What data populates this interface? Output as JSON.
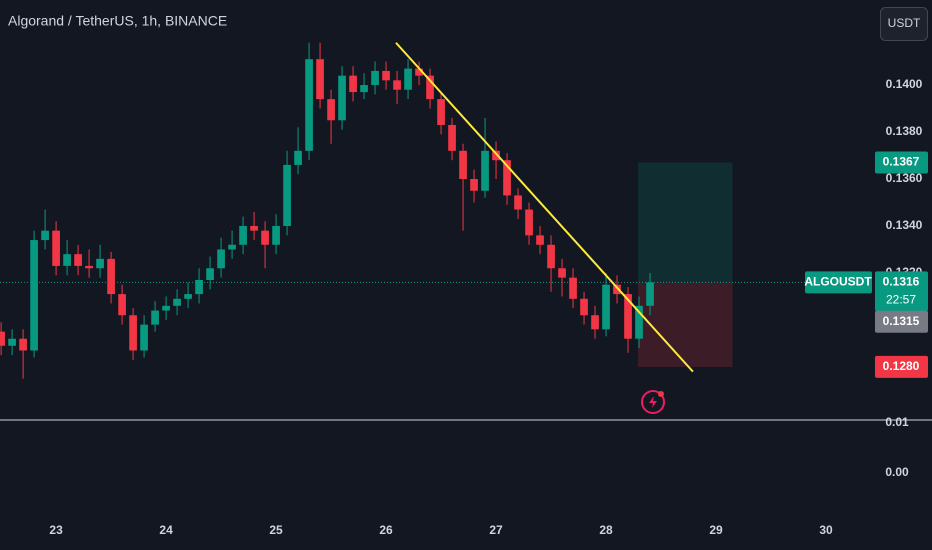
{
  "chart_data": {
    "type": "candlestick",
    "title": "Algorand / TetherUS, 1h, BINANCE",
    "currency_button": "USDT",
    "up_color": "#089981",
    "down_color": "#f23645",
    "x": [
      22.5,
      22.6,
      22.7,
      22.8,
      22.9,
      23.0,
      23.1,
      23.2,
      23.3,
      23.4,
      23.5,
      23.6,
      23.7,
      23.8,
      23.9,
      24.0,
      24.1,
      24.2,
      24.3,
      24.4,
      24.5,
      24.6,
      24.7,
      24.8,
      24.9,
      25.0,
      25.1,
      25.2,
      25.3,
      25.4,
      25.5,
      25.6,
      25.7,
      25.8,
      25.9,
      26.0,
      26.1,
      26.2,
      26.3,
      26.4,
      26.5,
      26.6,
      26.7,
      26.8,
      26.9,
      27.0,
      27.1,
      27.2,
      27.3,
      27.4,
      27.5,
      27.6,
      27.7,
      27.8,
      27.9,
      28.0,
      28.1,
      28.2,
      28.3,
      28.4
    ],
    "open": [
      0.1295,
      0.1289,
      0.1292,
      0.1287,
      0.1334,
      0.1338,
      0.1323,
      0.1328,
      0.1323,
      0.1322,
      0.1326,
      0.1311,
      0.1302,
      0.1287,
      0.1298,
      0.1304,
      0.1306,
      0.1309,
      0.1311,
      0.1317,
      0.1322,
      0.133,
      0.1332,
      0.134,
      0.1338,
      0.1332,
      0.134,
      0.1366,
      0.1372,
      0.1411,
      0.1394,
      0.1385,
      0.1404,
      0.1397,
      0.14,
      0.1406,
      0.1402,
      0.1398,
      0.1407,
      0.1404,
      0.1394,
      0.1383,
      0.1372,
      0.136,
      0.1355,
      0.1372,
      0.1368,
      0.1353,
      0.1347,
      0.1336,
      0.1332,
      0.1322,
      0.1318,
      0.1309,
      0.1302,
      0.1296,
      0.1315,
      0.1311,
      0.1292,
      0.1306
    ],
    "high": [
      0.1299,
      0.1296,
      0.1296,
      0.1338,
      0.1347,
      0.1342,
      0.1334,
      0.1332,
      0.133,
      0.1332,
      0.1329,
      0.1315,
      0.1305,
      0.1302,
      0.1308,
      0.131,
      0.1313,
      0.1316,
      0.1322,
      0.1327,
      0.1335,
      0.1338,
      0.1344,
      0.1346,
      0.1342,
      0.1345,
      0.1372,
      0.1382,
      0.1418,
      0.1418,
      0.1398,
      0.1408,
      0.1408,
      0.1405,
      0.141,
      0.141,
      0.1406,
      0.1411,
      0.141,
      0.1407,
      0.1397,
      0.1386,
      0.1375,
      0.1364,
      0.1386,
      0.1376,
      0.1371,
      0.1356,
      0.135,
      0.134,
      0.1336,
      0.1326,
      0.1322,
      0.1312,
      0.1306,
      0.132,
      0.1319,
      0.1314,
      0.131,
      0.132
    ],
    "low": [
      0.1285,
      0.1285,
      0.1275,
      0.1284,
      0.133,
      0.1319,
      0.1319,
      0.1319,
      0.1318,
      0.1318,
      0.1307,
      0.1298,
      0.1283,
      0.1284,
      0.1295,
      0.13,
      0.1302,
      0.1305,
      0.1307,
      0.1313,
      0.1318,
      0.1326,
      0.1328,
      0.1334,
      0.1322,
      0.1328,
      0.1336,
      0.1362,
      0.1368,
      0.139,
      0.1375,
      0.1381,
      0.1393,
      0.1394,
      0.1396,
      0.1398,
      0.1392,
      0.1394,
      0.14,
      0.139,
      0.1379,
      0.1368,
      0.1338,
      0.135,
      0.1352,
      0.136,
      0.1349,
      0.1343,
      0.1332,
      0.1328,
      0.1312,
      0.131,
      0.1305,
      0.1298,
      0.1292,
      0.1293,
      0.1307,
      0.1286,
      0.1288,
      0.1302
    ],
    "close": [
      0.1289,
      0.1292,
      0.1287,
      0.1334,
      0.1338,
      0.1323,
      0.1328,
      0.1323,
      0.1322,
      0.1326,
      0.1311,
      0.1302,
      0.1287,
      0.1298,
      0.1304,
      0.1306,
      0.1309,
      0.1311,
      0.1317,
      0.1322,
      0.133,
      0.1332,
      0.134,
      0.1338,
      0.1332,
      0.134,
      0.1366,
      0.1372,
      0.1411,
      0.1394,
      0.1385,
      0.1404,
      0.1397,
      0.14,
      0.1406,
      0.1402,
      0.1398,
      0.1407,
      0.1404,
      0.1394,
      0.1383,
      0.1372,
      0.136,
      0.1355,
      0.1372,
      0.1368,
      0.1353,
      0.1347,
      0.1336,
      0.1332,
      0.1322,
      0.1318,
      0.1309,
      0.1302,
      0.1296,
      0.1315,
      0.1311,
      0.1292,
      0.1306,
      0.1316
    ],
    "xlim": [
      22.49,
      30.4
    ],
    "xticks": [
      23,
      24,
      25,
      26,
      27,
      28,
      29,
      30
    ],
    "ylim": [
      0.12574,
      0.14362
    ],
    "yticks": [
      {
        "value": 0.14,
        "label": "0.1400"
      },
      {
        "value": 0.138,
        "label": "0.1380"
      },
      {
        "value": 0.136,
        "label": "0.1360"
      },
      {
        "value": 0.134,
        "label": "0.1340"
      },
      {
        "value": 0.132,
        "label": "0.1320"
      }
    ],
    "y2lim": [
      -0.0074,
      0.0106
    ],
    "y2ticks": [
      0.01,
      {
        "value": 0,
        "label": "0.00"
      }
    ],
    "trendline": {
      "x": [
        26.09,
        28.79
      ],
      "y": [
        0.1418,
        0.1278
      ],
      "color": "#ffeb3b"
    },
    "position": {
      "x": [
        28.29,
        29.15
      ],
      "entry": 0.1316,
      "target": 0.1367,
      "stop": {
        "value": 0.128,
        "label": "0.1280"
      }
    },
    "last_price": {
      "symbol": "ALGOUSDT",
      "value": 0.1316,
      "countdown": "22:57"
    },
    "marker": {
      "value": 0.1315,
      "color": "#787b86"
    }
  }
}
